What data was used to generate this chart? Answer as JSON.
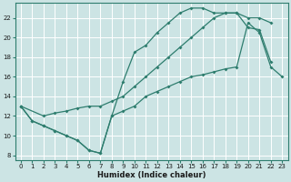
{
  "xlabel": "Humidex (Indice chaleur)",
  "xlim": [
    -0.5,
    23.5
  ],
  "ylim": [
    7.5,
    23.5
  ],
  "bg_color": "#cce4e4",
  "line_color": "#2e7d6e",
  "grid_color": "#ffffff",
  "curve1_x": [
    0,
    1,
    2,
    3,
    4,
    5,
    6,
    7,
    8,
    9,
    10,
    11,
    12,
    13,
    14,
    15,
    16,
    17,
    18,
    19,
    20,
    21,
    22
  ],
  "curve1_y": [
    13,
    11.5,
    11,
    10.5,
    10,
    9.5,
    8.5,
    8.2,
    12,
    15.5,
    18.5,
    19.2,
    20.5,
    21.5,
    22.5,
    23,
    23,
    22.5,
    22.5,
    22.5,
    21,
    20.8,
    17.5
  ],
  "curve2_x": [
    0,
    1,
    2,
    3,
    4,
    5,
    6,
    7,
    8,
    9,
    10,
    11,
    12,
    13,
    14,
    15,
    16,
    17,
    18,
    19,
    20,
    21,
    22,
    23
  ],
  "curve2_y": [
    13,
    11.5,
    11,
    10.5,
    10,
    9.5,
    8.5,
    8.2,
    12,
    12.5,
    13,
    14,
    14.5,
    15,
    15.5,
    16,
    16.2,
    16.5,
    16.8,
    17,
    21.5,
    20.5,
    17,
    16
  ],
  "curve3_x": [
    0,
    2,
    3,
    4,
    5,
    6,
    7,
    8,
    9,
    10,
    11,
    12,
    13,
    14,
    15,
    16,
    17,
    18,
    19,
    20,
    21,
    22
  ],
  "curve3_y": [
    13,
    12,
    12.3,
    12.5,
    12.8,
    13,
    13,
    13.5,
    14,
    15,
    16,
    17,
    18,
    19,
    20,
    21,
    22,
    22.5,
    22.5,
    22,
    22,
    21.5
  ],
  "xticks": [
    0,
    1,
    2,
    3,
    4,
    5,
    6,
    7,
    8,
    9,
    10,
    11,
    12,
    13,
    14,
    15,
    16,
    17,
    18,
    19,
    20,
    21,
    22,
    23
  ],
  "yticks": [
    8,
    10,
    12,
    14,
    16,
    18,
    20,
    22
  ]
}
